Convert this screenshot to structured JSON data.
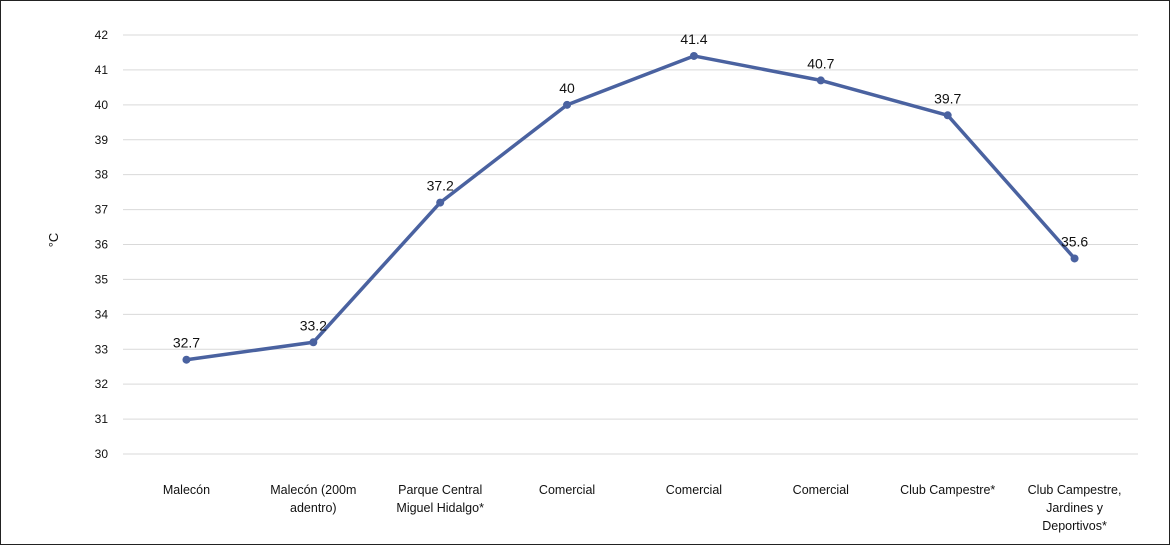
{
  "chart_data": {
    "type": "line",
    "categories": [
      [
        "Malecón"
      ],
      [
        "Malecón (200m",
        "adentro)"
      ],
      [
        "Parque Central",
        "Miguel Hidalgo*"
      ],
      [
        "Comercial"
      ],
      [
        "Comercial"
      ],
      [
        "Comercial"
      ],
      [
        "Club Campestre*"
      ],
      [
        "Club Campestre,",
        "Jardines y",
        "Deportivos*"
      ]
    ],
    "values": [
      32.7,
      33.2,
      37.2,
      40,
      41.4,
      40.7,
      39.7,
      35.6
    ],
    "data_labels": [
      "32.7",
      "33.2",
      "37.2",
      "40",
      "41.4",
      "40.7",
      "39.7",
      "35.6"
    ],
    "ylabel": "°C",
    "ylim": [
      30,
      42
    ],
    "yticks": [
      30,
      31,
      32,
      33,
      34,
      35,
      36,
      37,
      38,
      39,
      40,
      41,
      42
    ],
    "grid": true,
    "line_color": "#4a62a0",
    "grid_color": "#d9d9d9"
  }
}
